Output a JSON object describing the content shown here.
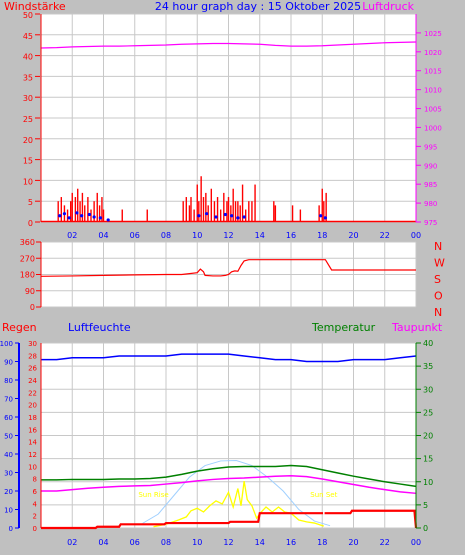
{
  "title": "24 hour graph day : 15 Oktober 2025",
  "colors": {
    "background": "#c0c0c0",
    "plot_bg": "#ffffff",
    "grid": "#c8c8c8",
    "wind": "#ff0000",
    "gust": "#0000ff",
    "pressure": "#ff00ff",
    "direction": "#ff0000",
    "rain": "#ff0000",
    "humidity": "#0000ff",
    "temperature": "#008000",
    "dewpoint": "#ff00ff",
    "solar": "#ffff00",
    "uv": "#a0d0ff",
    "sun_label": "#ffff00"
  },
  "chart_data": [
    {
      "type": "bar",
      "panel": "wind_pressure",
      "left_axis_label": "Windstärke",
      "right_axis_label": "Luftdruck",
      "left_ylim": [
        0,
        50
      ],
      "left_ticks": [
        "0",
        "5",
        "10",
        "15",
        "20",
        "25",
        "30",
        "35",
        "40",
        "45",
        "50"
      ],
      "right_ylim": [
        975,
        1030
      ],
      "right_ticks": [
        "975",
        "980",
        "985",
        "990",
        "995",
        "1000",
        "1005",
        "1010",
        "1015",
        "1020",
        "1025"
      ],
      "x_ticks": [
        "02",
        "04",
        "06",
        "08",
        "10",
        "12",
        "14",
        "16",
        "18",
        "20",
        "22",
        "00"
      ],
      "xlim": [
        0,
        24
      ],
      "grid": true,
      "series": [
        {
          "kind": "bars",
          "x": [
            1.1,
            1.3,
            1.5,
            1.7,
            1.9,
            2.0,
            2.2,
            2.35,
            2.5,
            2.65,
            2.8,
            3.0,
            3.2,
            3.4,
            3.6,
            3.75,
            3.9,
            4.0,
            5.2,
            6.8,
            9.1,
            9.3,
            9.5,
            9.6,
            9.8,
            10.0,
            10.1,
            10.25,
            10.4,
            10.55,
            10.7,
            10.9,
            11.1,
            11.3,
            11.5,
            11.7,
            11.9,
            12.0,
            12.15,
            12.3,
            12.45,
            12.6,
            12.75,
            12.9,
            13.1,
            13.3,
            13.5,
            13.7,
            14.9,
            15.0,
            16.1,
            16.6,
            17.8,
            18.0,
            18.1,
            18.25
          ],
          "values": [
            5,
            6,
            4,
            3,
            5,
            7,
            6,
            8,
            5,
            7,
            4,
            6,
            3,
            5,
            7,
            4,
            6,
            3,
            3,
            3,
            5,
            6,
            4,
            6,
            3,
            9,
            5,
            11,
            6,
            7,
            4,
            8,
            5,
            6,
            3,
            7,
            5,
            6,
            4,
            8,
            5,
            5,
            4,
            9,
            3,
            5,
            5,
            9,
            5,
            4,
            4,
            3,
            4,
            8,
            5,
            7
          ]
        },
        {
          "kind": "line",
          "name": "gust",
          "x": [
            1.2,
            1.5,
            1.8,
            2.3,
            2.6,
            3.1,
            3.4,
            3.8,
            4.3,
            10.1,
            10.6,
            11.2,
            11.8,
            12.2,
            12.6,
            13.0,
            17.9,
            18.2
          ],
          "values": [
            1.5,
            2.0,
            1.0,
            2.2,
            1.5,
            1.8,
            1.2,
            1.0,
            0.5,
            1.5,
            2.0,
            1.2,
            1.8,
            1.5,
            1.0,
            1.2,
            1.5,
            1.0
          ]
        },
        {
          "kind": "line",
          "name": "pressure",
          "axis": "right",
          "x": [
            0,
            1,
            2,
            3,
            4,
            5,
            6,
            7,
            8,
            9,
            10,
            11,
            12,
            13,
            14,
            15,
            16,
            17,
            18,
            19,
            20,
            21,
            22,
            23,
            24
          ],
          "values": [
            1021.0,
            1021.1,
            1021.3,
            1021.4,
            1021.5,
            1021.5,
            1021.6,
            1021.7,
            1021.8,
            1022.0,
            1022.1,
            1022.2,
            1022.2,
            1022.1,
            1022.0,
            1021.7,
            1021.5,
            1021.5,
            1021.6,
            1021.8,
            1022.0,
            1022.2,
            1022.4,
            1022.5,
            1022.6
          ]
        }
      ]
    },
    {
      "type": "line",
      "panel": "wind_direction",
      "ylim": [
        0,
        360
      ],
      "left_ticks": [
        "0",
        "90",
        "180",
        "270",
        "360"
      ],
      "right_labels": [
        "N",
        "W",
        "S",
        "O",
        "N"
      ],
      "xlim": [
        0,
        24
      ],
      "grid": true,
      "series": [
        {
          "name": "direction",
          "x": [
            0,
            2,
            4,
            6,
            8,
            9,
            9.5,
            10.0,
            10.2,
            10.4,
            10.5,
            11.0,
            11.5,
            11.8,
            12.0,
            12.2,
            12.4,
            12.6,
            12.8,
            13.0,
            13.3,
            18.2,
            18.6,
            24
          ],
          "values": [
            170,
            172,
            175,
            178,
            180,
            180,
            185,
            190,
            210,
            195,
            175,
            172,
            172,
            175,
            180,
            195,
            200,
            198,
            230,
            255,
            262,
            262,
            205,
            205
          ]
        }
      ]
    },
    {
      "type": "line",
      "panel": "temp_rain_humidity",
      "labels": [
        "Regen",
        "Luftfeuchte",
        "Temperatur",
        "Taupunkt"
      ],
      "rain_ylim": [
        0,
        30
      ],
      "rain_ticks": [
        "0",
        "2",
        "4",
        "6",
        "8",
        "10",
        "12",
        "14",
        "16",
        "18",
        "20",
        "22",
        "24",
        "26",
        "28",
        "30"
      ],
      "humidity_ylim": [
        0,
        100
      ],
      "humidity_ticks": [
        "0",
        "10",
        "20",
        "30",
        "40",
        "50",
        "60",
        "70",
        "80",
        "90",
        "100"
      ],
      "temp_ylim": [
        0,
        40
      ],
      "temp_ticks": [
        "0",
        "5",
        "10",
        "15",
        "20",
        "25",
        "30",
        "35",
        "40"
      ],
      "x_ticks": [
        "02",
        "04",
        "06",
        "08",
        "10",
        "12",
        "14",
        "16",
        "18",
        "20",
        "22",
        "00"
      ],
      "xlim": [
        0,
        24
      ],
      "annotations": [
        {
          "text": "Sun Rise",
          "x": 7.2
        },
        {
          "text": "Sun Set",
          "x": 18.1
        }
      ],
      "series": [
        {
          "name": "rain",
          "axis": "rain",
          "x": [
            0,
            3.5,
            3.6,
            5.0,
            5.1,
            7.9,
            8.0,
            12.0,
            12.1,
            13.9,
            14.0,
            19.8,
            19.9,
            23.9,
            24.0
          ],
          "values": [
            0,
            0,
            0.2,
            0.2,
            0.6,
            0.6,
            0.8,
            0.8,
            1.0,
            1.0,
            2.4,
            2.4,
            2.8,
            2.8,
            0
          ]
        },
        {
          "name": "humidity",
          "axis": "humidity",
          "x": [
            0,
            1,
            2,
            3,
            4,
            5,
            6,
            7,
            8,
            9,
            10,
            11,
            12,
            13,
            14,
            15,
            16,
            17,
            18,
            19,
            20,
            21,
            22,
            23,
            24
          ],
          "values": [
            91,
            91,
            92,
            92,
            92,
            93,
            93,
            93,
            93,
            94,
            94,
            94,
            94,
            93,
            92,
            91,
            91,
            90,
            90,
            90,
            91,
            91,
            91,
            92,
            93
          ]
        },
        {
          "name": "temperature",
          "axis": "temp",
          "x": [
            0,
            1,
            2,
            3,
            4,
            5,
            6,
            7,
            8,
            9,
            10,
            11,
            12,
            13,
            14,
            15,
            16,
            17,
            18,
            19,
            20,
            21,
            22,
            23,
            24
          ],
          "values": [
            10.4,
            10.4,
            10.5,
            10.5,
            10.5,
            10.6,
            10.6,
            10.7,
            11.0,
            11.6,
            12.3,
            12.8,
            13.2,
            13.3,
            13.3,
            13.3,
            13.5,
            13.3,
            12.6,
            11.9,
            11.2,
            10.6,
            10.0,
            9.5,
            9.0
          ]
        },
        {
          "name": "dewpoint",
          "axis": "temp",
          "x": [
            0,
            1,
            2,
            3,
            4,
            5,
            6,
            7,
            8,
            9,
            10,
            11,
            12,
            13,
            14,
            15,
            16,
            17,
            18,
            19,
            20,
            21,
            22,
            23,
            24
          ],
          "values": [
            8.0,
            8.0,
            8.3,
            8.6,
            8.8,
            9.0,
            9.1,
            9.2,
            9.5,
            9.8,
            10.2,
            10.5,
            10.7,
            10.8,
            11.0,
            11.2,
            11.3,
            11.1,
            10.6,
            10.0,
            9.4,
            8.8,
            8.3,
            7.8,
            7.5
          ]
        },
        {
          "name": "solar",
          "axis": "rain",
          "x": [
            7.2,
            8.0,
            8.8,
            9.3,
            9.6,
            10.0,
            10.4,
            10.8,
            11.2,
            11.6,
            12.0,
            12.3,
            12.6,
            12.8,
            13.0,
            13.2,
            13.5,
            13.8,
            14.1,
            14.4,
            14.8,
            15.2,
            15.6,
            16.0,
            16.5,
            17.0,
            17.5,
            18.1
          ],
          "values": [
            0.2,
            0.6,
            1.3,
            1.8,
            2.8,
            3.2,
            2.6,
            3.6,
            4.4,
            3.9,
            5.8,
            3.4,
            6.4,
            3.6,
            7.6,
            4.6,
            3.6,
            1.6,
            2.6,
            3.4,
            2.6,
            3.4,
            2.6,
            2.4,
            1.3,
            1.0,
            0.8,
            0.3
          ]
        },
        {
          "name": "uv",
          "axis": "temp",
          "x": [
            6.5,
            7.5,
            8.5,
            9.5,
            10.5,
            11.5,
            12.5,
            13.5,
            14.5,
            15.5,
            16.5,
            17.5,
            18.5
          ],
          "values": [
            1,
            3,
            7,
            11,
            13.5,
            14.5,
            14.6,
            13.5,
            11,
            8,
            4,
            1.5,
            0.5
          ]
        }
      ]
    }
  ]
}
